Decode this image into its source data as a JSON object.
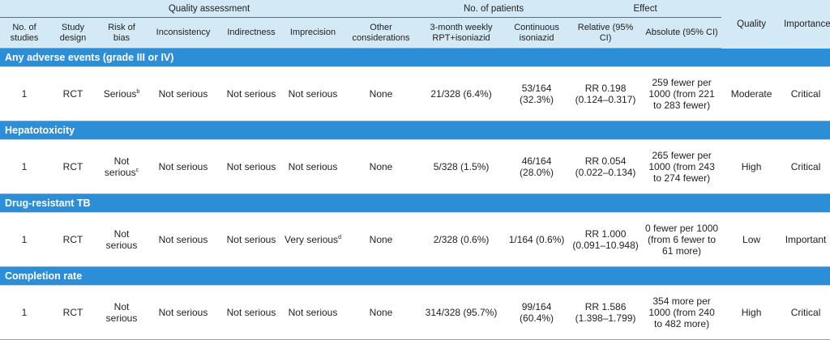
{
  "headers": {
    "groups": {
      "quality_assessment": "Quality assessment",
      "no_of_patients": "No. of patients",
      "effect": "Effect"
    },
    "columns": {
      "no_of_studies": "No. of studies",
      "study_design": "Study design",
      "risk_of_bias": "Risk of bias",
      "inconsistency": "Inconsistency",
      "indirectness": "Indirectness",
      "imprecision": "Imprecision",
      "other_considerations": "Other considerations",
      "rpt_isoniazid": "3-month weekly RPT+isoniazid",
      "continuous_isoniazid": "Continuous isoniazid",
      "relative": "Relative (95% CI)",
      "absolute": "Absolute (95% CI)",
      "quality": "Quality",
      "importance": "Importance"
    }
  },
  "outcomes": [
    {
      "title": "Any adverse events (grade III or IV)",
      "studies": "1",
      "design": "RCT",
      "risk_of_bias": "Serious",
      "risk_of_bias_note": "b",
      "inconsistency": "Not serious",
      "indirectness": "Not serious",
      "imprecision": "Not serious",
      "imprecision_note": "",
      "other": "None",
      "rpt": "21/328 (6.4%)",
      "continuous": "53/164 (32.3%)",
      "relative": "RR 0.198 (0.124–0.317)",
      "absolute": "259 fewer per 1000 (from 221 to 283 fewer)",
      "quality": "Moderate",
      "importance": "Critical"
    },
    {
      "title": "Hepatotoxicity",
      "studies": "1",
      "design": "RCT",
      "risk_of_bias": "Not serious",
      "risk_of_bias_note": "c",
      "inconsistency": "Not serious",
      "indirectness": "Not serious",
      "imprecision": "Not serious",
      "imprecision_note": "",
      "other": "None",
      "rpt": "5/328 (1.5%)",
      "continuous": "46/164 (28.0%)",
      "relative": "RR 0.054 (0.022–0.134)",
      "absolute": "265 fewer per 1000 (from 243 to 274 fewer)",
      "quality": "High",
      "importance": "Critical"
    },
    {
      "title": "Drug-resistant TB",
      "studies": "1",
      "design": "RCT",
      "risk_of_bias": "Not serious",
      "risk_of_bias_note": "",
      "inconsistency": "Not serious",
      "indirectness": "Not serious",
      "imprecision": "Very serious",
      "imprecision_note": "d",
      "other": "None",
      "rpt": "2/328 (0.6%)",
      "continuous": "1/164 (0.6%)",
      "relative": "RR 1.000 (0.091–10.948)",
      "absolute": "0 fewer per 1000 (from 6 fewer to 61 more)",
      "quality": "Low",
      "importance": "Important"
    },
    {
      "title": "Completion rate",
      "studies": "1",
      "design": "RCT",
      "risk_of_bias": "Not serious",
      "risk_of_bias_note": "",
      "inconsistency": "Not serious",
      "indirectness": "Not serious",
      "imprecision": "Not serious",
      "imprecision_note": "",
      "other": "None",
      "rpt": "314/328 (95.7%)",
      "continuous": "99/164 (60.4%)",
      "relative": "RR 1.586 (1.398–1.799)",
      "absolute": "354 more per 1000 (from 240 to 482 more)",
      "quality": "High",
      "importance": "Critical"
    }
  ]
}
